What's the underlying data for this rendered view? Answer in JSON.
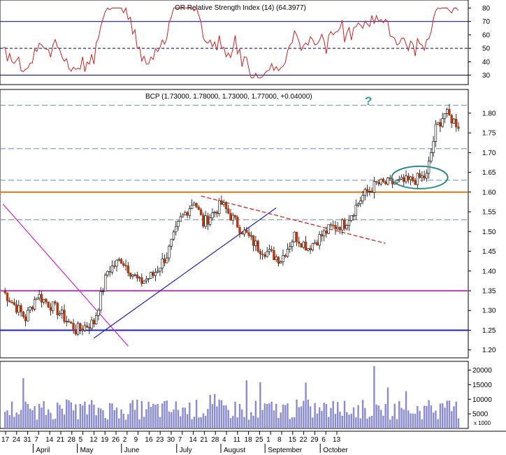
{
  "chart_data": {
    "type": "candlestick",
    "panels": {
      "rsi": {
        "header": "OR Relative Strength Index (14) (64.3977)",
        "y_ticks": [
          30,
          40,
          50,
          60,
          70,
          80
        ],
        "ylim": [
          23,
          86
        ],
        "levels": [
          {
            "value": 70,
            "style": "solid"
          },
          {
            "value": 50,
            "style": "dashed"
          },
          {
            "value": 30,
            "style": "solid"
          }
        ]
      },
      "price": {
        "header": "BCP (1.73000, 1.78000, 1.73000, 1.77000, +0.04000)",
        "y_ticks": [
          "1.20",
          "1.25",
          "1.30",
          "1.35",
          "1.40",
          "1.45",
          "1.50",
          "1.55",
          "1.60",
          "1.65",
          "1.70",
          "1.75",
          "1.80"
        ],
        "ylim": [
          1.18,
          1.86
        ],
        "annotation": "?",
        "horizontal_levels": [
          {
            "value": 1.82,
            "color": "#6b8fa0",
            "style": "dashed"
          },
          {
            "value": 1.71,
            "color": "#6b8fa0",
            "style": "dashed"
          },
          {
            "value": 1.63,
            "color": "#6b8fa0",
            "style": "dashed"
          },
          {
            "value": 1.6,
            "color": "#e07818",
            "style": "solid"
          },
          {
            "value": 1.53,
            "color": "#6b8fa0",
            "style": "dashed"
          },
          {
            "value": 1.35,
            "color": "#d040d0",
            "style": "solid"
          },
          {
            "value": 1.25,
            "color": "#2020d0",
            "style": "solid"
          }
        ],
        "trend_lines": [
          {
            "from": [
              0,
              1.57
            ],
            "to": [
              55,
              1.21
            ],
            "color": "#d020d0",
            "style": "solid"
          },
          {
            "from": [
              40,
              1.23
            ],
            "to": [
              120,
              1.56
            ],
            "color": "#2020c0",
            "style": "solid"
          },
          {
            "from": [
              87,
              1.59
            ],
            "to": [
              168,
              1.47
            ],
            "color": "#d01818",
            "style": "dashed"
          }
        ],
        "ellipse": {
          "center": [
            183,
            1.637
          ],
          "color": "#2a8a8a"
        }
      },
      "volume": {
        "unit_label": "x 1000",
        "y_ticks": [
          5000,
          10000,
          15000,
          20000
        ],
        "ylim": [
          0,
          23000
        ]
      }
    },
    "x_axis": {
      "day_ticks": [
        "17",
        "24",
        "31",
        "7",
        "14",
        "21",
        "28",
        "5",
        "12",
        "19",
        "26",
        "2",
        "9",
        "16",
        "23",
        "30",
        "7",
        "14",
        "21",
        "28",
        "4",
        "11",
        "18",
        "25",
        "1",
        "8",
        "15",
        "22",
        "29",
        "6",
        "13"
      ],
      "months": [
        "April",
        "May",
        "June",
        "July",
        "August",
        "September",
        "October"
      ]
    },
    "colors": {
      "up": "#ffffff",
      "down": "#b03a12",
      "rsi_line": "#d02020",
      "volume": "#8a8ad0",
      "grid": "#000080"
    }
  }
}
